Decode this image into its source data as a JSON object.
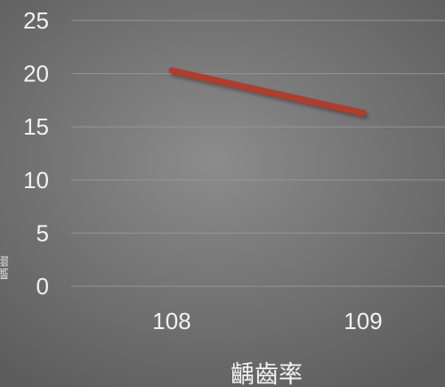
{
  "chart_data": {
    "type": "line",
    "title": "",
    "xlabel": "",
    "ylabel": "齲齒",
    "categories": [
      "108",
      "109"
    ],
    "series": [
      {
        "name": "齲齒率",
        "values": [
          20.3,
          16.3
        ],
        "color": "#b43a2a"
      }
    ],
    "ylim": [
      0,
      25
    ],
    "yticks": [
      0,
      5,
      10,
      15,
      20,
      25
    ],
    "grid": true,
    "legend": "bottom"
  }
}
